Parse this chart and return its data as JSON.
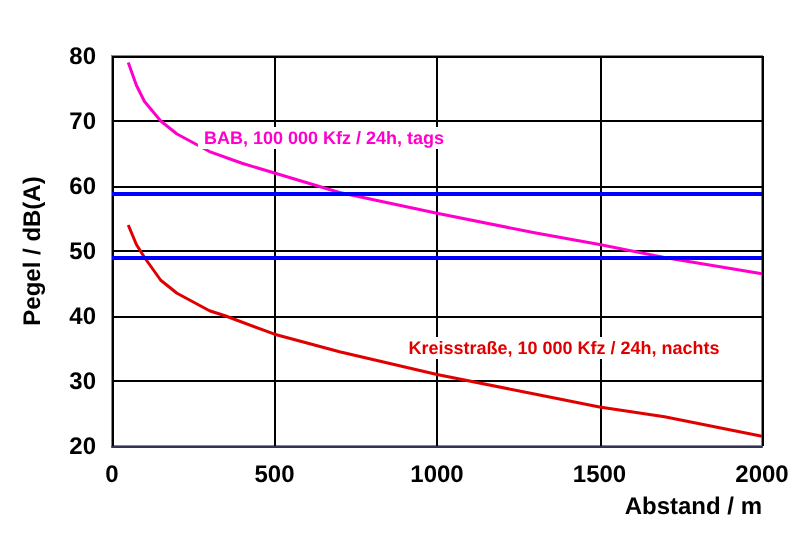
{
  "chart_data": {
    "type": "line",
    "xlabel": "Abstand / m",
    "ylabel": "Pegel / dB(A)",
    "xlim": [
      0,
      2000
    ],
    "xticks": [
      0,
      500,
      1000,
      1500,
      2000
    ],
    "ylim": [
      20,
      80
    ],
    "yticks": [
      20,
      30,
      40,
      50,
      60,
      70,
      80
    ],
    "grid": true,
    "marker": "none",
    "series": [
      {
        "color": "#ff00cc",
        "x": [
          50,
          75,
          100,
          150,
          200,
          300,
          400,
          500,
          700,
          1000,
          1300,
          1500,
          1700,
          2000
        ],
        "values": [
          79,
          75.5,
          73,
          70,
          68,
          65.3,
          63.5,
          62,
          59,
          55.8,
          52.8,
          51,
          49,
          46.5
        ]
      },
      {
        "color": "#e00000",
        "x": [
          50,
          75,
          100,
          150,
          200,
          300,
          350,
          500,
          700,
          1000,
          1300,
          1500,
          1700,
          2000
        ],
        "values": [
          54,
          51,
          49,
          45.5,
          43.5,
          40.8,
          40,
          37.2,
          34.5,
          31,
          28,
          26,
          24.5,
          21.5
        ]
      }
    ],
    "ref_lines": [
      {
        "axis": "y",
        "value": 59,
        "color": "#0000ff"
      },
      {
        "axis": "y",
        "value": 49,
        "color": "#0000ff"
      }
    ],
    "annotations": [
      "BAB, 100 000 Kfz / 24h, tags",
      "Kreisstraße, 10 000 Kfz / 24h, nachts"
    ]
  }
}
